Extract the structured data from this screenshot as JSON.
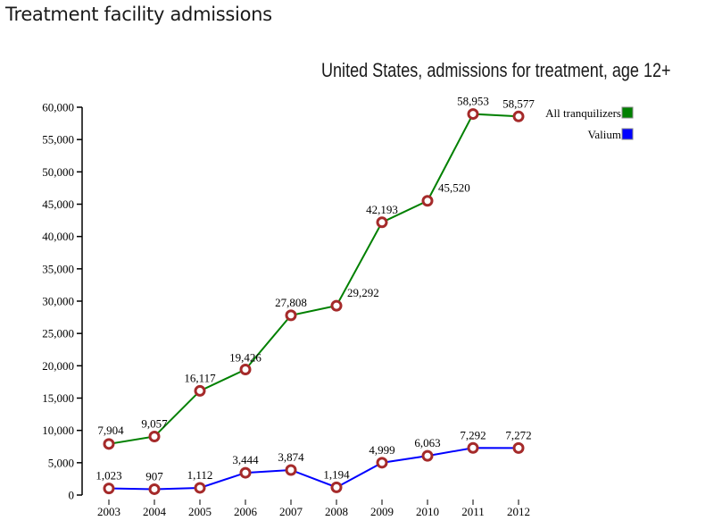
{
  "page": {
    "title": "Treatment facility admissions"
  },
  "chart_data": {
    "type": "line",
    "title": "United States, admissions for treatment, age 12+",
    "xlabel": "",
    "ylabel": "",
    "x": [
      "2003",
      "2004",
      "2005",
      "2006",
      "2007",
      "2008",
      "2009",
      "2010",
      "2011",
      "2012"
    ],
    "ylim": [
      0,
      60000
    ],
    "yticks": [
      0,
      5000,
      10000,
      15000,
      20000,
      25000,
      30000,
      35000,
      40000,
      45000,
      50000,
      55000,
      60000
    ],
    "ytick_labels": [
      "0",
      "5,000",
      "10,000",
      "15,000",
      "20,000",
      "25,000",
      "30,000",
      "35,000",
      "40,000",
      "45,000",
      "50,000",
      "55,000",
      "60,000"
    ],
    "grid": false,
    "legend_position": "top-right",
    "marker_color": "#a52a2a",
    "series": [
      {
        "name": "All tranquilizers",
        "color": "#008000",
        "values": [
          7904,
          9057,
          16117,
          19426,
          27808,
          29292,
          42193,
          45520,
          58953,
          58577
        ],
        "labels": [
          "7,904",
          "9,057",
          "16,117",
          "19,426",
          "27,808",
          "29,292",
          "42,193",
          "45,520",
          "58,953",
          "58,577"
        ]
      },
      {
        "name": "Valium",
        "color": "#0000ff",
        "values": [
          1023,
          907,
          1112,
          3444,
          3874,
          1194,
          4999,
          6063,
          7292,
          7272
        ],
        "labels": [
          "1,023",
          "907",
          "1,112",
          "3,444",
          "3,874",
          "1,194",
          "4,999",
          "6,063",
          "7,292",
          "7,272"
        ]
      }
    ]
  }
}
